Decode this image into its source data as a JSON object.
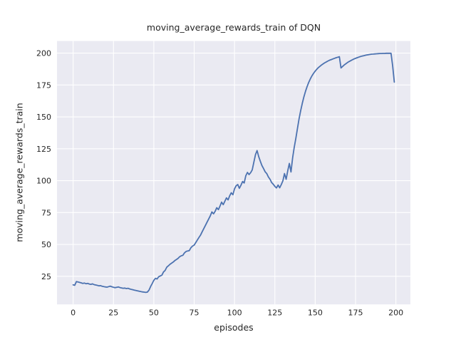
{
  "chart_data": {
    "type": "line",
    "title": "moving_average_rewards_train of DQN",
    "xlabel": "episodes",
    "ylabel": "moving_average_rewards_train",
    "xlim": [
      -10,
      209
    ],
    "ylim": [
      3,
      209.5
    ],
    "xticks": [
      0,
      25,
      50,
      75,
      100,
      125,
      150,
      175,
      200
    ],
    "yticks": [
      25,
      50,
      75,
      100,
      125,
      150,
      175,
      200
    ],
    "grid": true,
    "style": {
      "figure_bg": "#FFFFFF",
      "axes_bg": "#EAEAF2",
      "grid_color": "#FFFFFF",
      "line_color": "#4C72B0",
      "text_color": "#262626"
    },
    "series": [
      {
        "name": "moving_average_rewards_train",
        "x_start": 0,
        "x_step": 1,
        "y_values": [
          18.3,
          18.0,
          20.9,
          20.6,
          20.2,
          19.9,
          19.4,
          19.7,
          19.2,
          19.5,
          19.0,
          18.7,
          19.1,
          18.5,
          18.2,
          17.9,
          17.5,
          17.7,
          17.2,
          16.9,
          16.7,
          16.5,
          16.9,
          17.3,
          16.8,
          16.4,
          16.1,
          16.4,
          16.7,
          16.2,
          15.9,
          15.6,
          15.8,
          15.4,
          15.6,
          15.1,
          14.8,
          14.5,
          14.2,
          13.9,
          13.6,
          13.3,
          13.0,
          12.8,
          12.6,
          12.4,
          12.6,
          14.2,
          17.0,
          19.3,
          21.9,
          23.4,
          22.9,
          24.7,
          25.3,
          25.9,
          28.4,
          29.6,
          32.1,
          33.2,
          34.4,
          35.3,
          36.2,
          37.3,
          38.2,
          39.1,
          40.3,
          41.1,
          41.5,
          43.4,
          44.5,
          44.9,
          45.2,
          47.5,
          48.7,
          49.5,
          51.5,
          53.5,
          55.5,
          57.5,
          60.0,
          62.5,
          65.0,
          67.5,
          70.0,
          72.5,
          75.5,
          74.0,
          76.0,
          78.8,
          77.3,
          80.0,
          83.2,
          81.2,
          83.8,
          86.5,
          84.9,
          88.1,
          90.5,
          89.0,
          93.5,
          96.0,
          97.0,
          94.0,
          96.5,
          99.4,
          98.2,
          103.9,
          106.5,
          104.8,
          106.3,
          108.5,
          114.5,
          120.5,
          123.6,
          118.9,
          115.2,
          111.9,
          109.5,
          106.9,
          105.6,
          102.9,
          101.1,
          98.6,
          97.2,
          95.5,
          94.3,
          96.6,
          94.4,
          97.0,
          100.0,
          105.6,
          101.1,
          107.9,
          113.5,
          106.8,
          117.9,
          126.0,
          133.1,
          141.0,
          148.4,
          154.9,
          160.7,
          165.7,
          170.1,
          173.9,
          177.1,
          179.9,
          182.2,
          184.2,
          185.9,
          187.4,
          188.7,
          189.8,
          190.8,
          191.7,
          192.5,
          193.2,
          193.9,
          194.5,
          195.0,
          195.5,
          196.0,
          196.4,
          196.8,
          197.2,
          188.4,
          189.6,
          190.7,
          191.7,
          192.6,
          193.4,
          194.1,
          194.8,
          195.4,
          195.9,
          196.4,
          196.9,
          197.3,
          197.7,
          198.0,
          198.3,
          198.6,
          198.8,
          199.0,
          199.2,
          199.3,
          199.4,
          199.5,
          199.6,
          199.7,
          199.7,
          199.8,
          199.8,
          199.9,
          199.9,
          199.9,
          199.9,
          190.0,
          177.3
        ]
      }
    ]
  }
}
